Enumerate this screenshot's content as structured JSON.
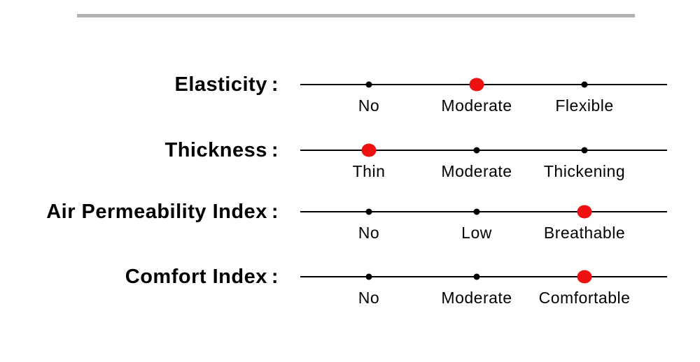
{
  "colors": {
    "accent_red": "#ee1111",
    "ink_black": "#000000",
    "divider_gray": "#b4b1b1"
  },
  "rows": [
    {
      "label": "Elasticity",
      "colon": ":",
      "options": [
        "No",
        "Moderate",
        "Flexible"
      ],
      "selected_index": 1,
      "selected_label": "Moderate"
    },
    {
      "label": "Thickness",
      "colon": ":",
      "options": [
        "Thin",
        "Moderate",
        "Thickening"
      ],
      "selected_index": 0,
      "selected_label": "Thin"
    },
    {
      "label": "Air Permeability Index",
      "colon": ":",
      "options": [
        "No",
        "Low",
        "Breathable"
      ],
      "selected_index": 2,
      "selected_label": "Breathable"
    },
    {
      "label": "Comfort Index",
      "colon": ":",
      "options": [
        "No",
        "Moderate",
        "Comfortable"
      ],
      "selected_index": 2,
      "selected_label": "Comfortable"
    }
  ]
}
